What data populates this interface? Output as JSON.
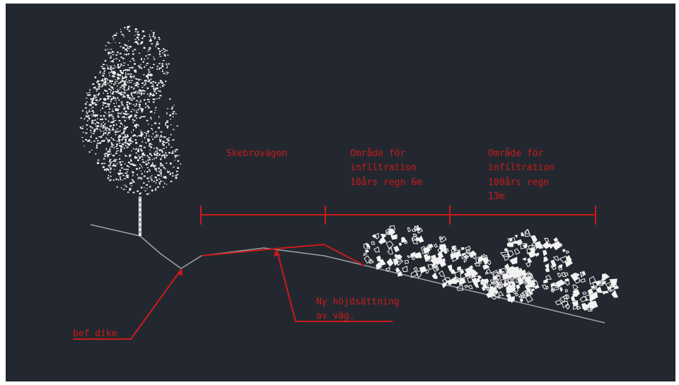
{
  "colors": {
    "background": "#232830",
    "annotation": "#cc1a1a",
    "ground": "#9a9ea6",
    "vegetation": "#f2f2f2"
  },
  "labels": {
    "road": "Skebrovägen",
    "zone_small": [
      "Område för",
      "infiltration",
      "10års regn 6m"
    ],
    "zone_large": [
      "Område för",
      "infiltration",
      "100års regn",
      "13m"
    ],
    "new_level": [
      "Ny höjdsättning",
      "av väg."
    ],
    "ditch": "bef dike"
  },
  "icons": [
    "birch-tree-icon",
    "shrub-cluster-icon"
  ]
}
